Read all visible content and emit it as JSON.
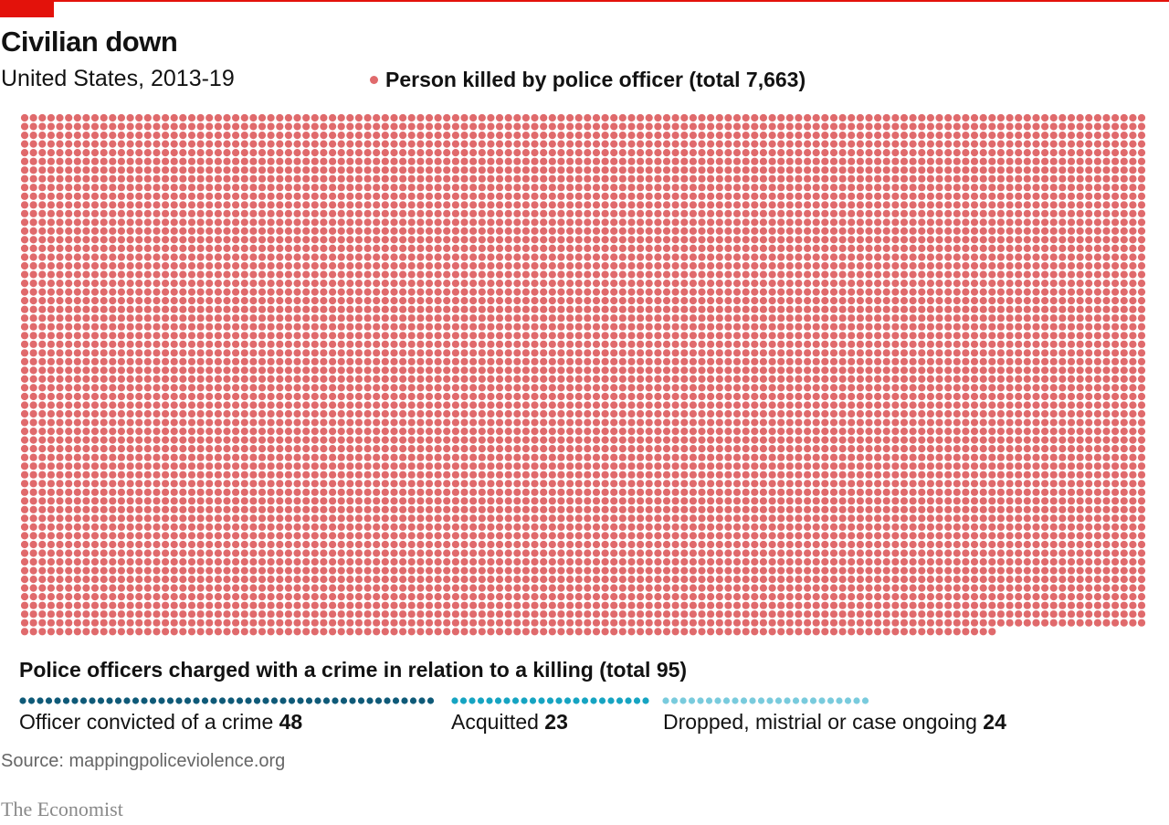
{
  "header": {
    "title": "Civilian down",
    "subtitle": "United States, 2013-19",
    "legend_label": "Person killed by police officer (total 7,663)"
  },
  "charged": {
    "heading": "Police officers charged with a crime in relation to a killing (total 95)",
    "categories": [
      {
        "label": "Officer convicted of a crime",
        "value": "48"
      },
      {
        "label": "Acquitted",
        "value": "23"
      },
      {
        "label": "Dropped, mistrial or case ongoing",
        "value": "24"
      }
    ]
  },
  "footer": {
    "source": "Source: mappingpoliceviolence.org",
    "logo": "The Economist"
  },
  "chart_data": [
    {
      "type": "dot-matrix",
      "series": [
        {
          "name": "Person killed by police officer",
          "value": 7663,
          "color": "#e06a6c"
        }
      ]
    },
    {
      "type": "dot-strip",
      "series": [
        {
          "name": "Officer convicted of a crime",
          "value": 48,
          "color": "#0f5a78"
        },
        {
          "name": "Acquitted",
          "value": 23,
          "color": "#16a4c2"
        },
        {
          "name": "Dropped, mistrial or case ongoing",
          "value": 24,
          "color": "#79cbdd"
        }
      ]
    }
  ]
}
